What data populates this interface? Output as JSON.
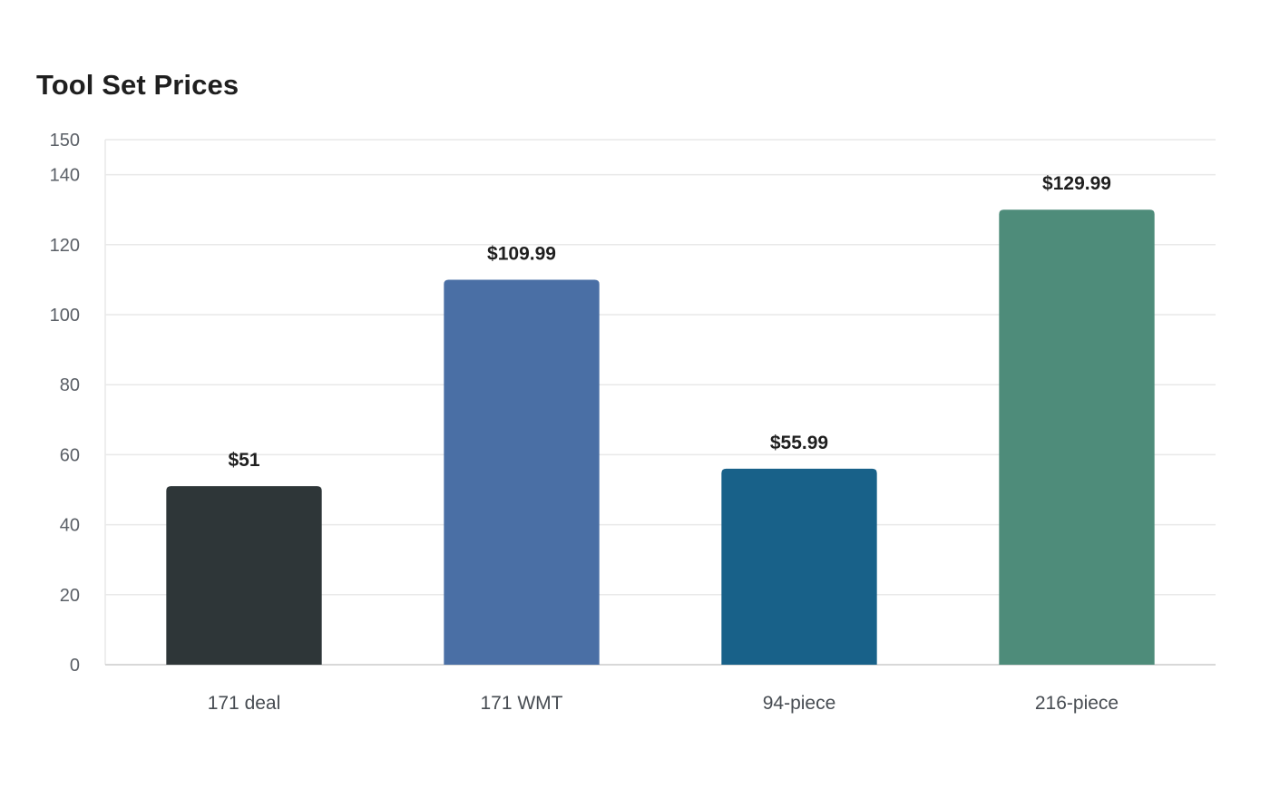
{
  "chart_data": {
    "type": "bar",
    "title": "Tool Set Prices",
    "xlabel": "",
    "ylabel": "",
    "categories": [
      "171 deal",
      "171 WMT",
      "94-piece",
      "216-piece"
    ],
    "values": [
      51,
      109.99,
      55.99,
      129.99
    ],
    "data_labels": [
      "$51",
      "$109.99",
      "$55.99",
      "$129.99"
    ],
    "colors": [
      "#2e3638",
      "#4a6fa5",
      "#186189",
      "#4e8c7a"
    ],
    "ylim": [
      0,
      150
    ],
    "yticks": [
      0,
      20,
      40,
      60,
      80,
      100,
      120,
      140,
      150
    ],
    "grid": true,
    "legend": "none"
  }
}
